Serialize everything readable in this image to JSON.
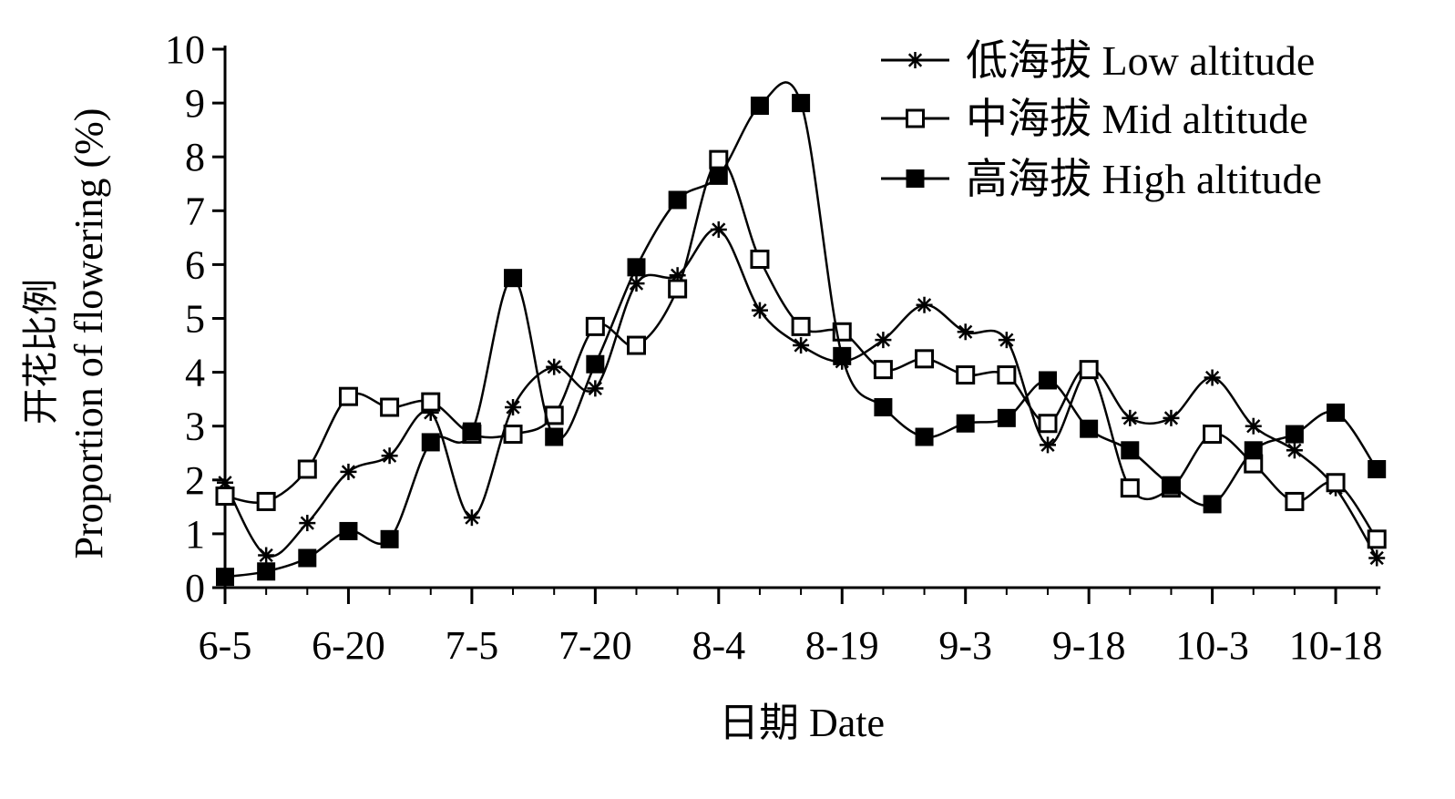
{
  "chart_data": {
    "type": "line",
    "xlabel": "日期 Date",
    "ylabel_cn": "开花比例",
    "ylabel_en": "Proportion of flowering (%)",
    "ylim": [
      0,
      10
    ],
    "y_ticks": [
      "0",
      "1",
      "2",
      "3",
      "4",
      "5",
      "6",
      "7",
      "8",
      "9",
      "10"
    ],
    "x_ticks": [
      "6-5",
      "6-20",
      "7-5",
      "7-20",
      "8-4",
      "8-19",
      "9-3",
      "9-18",
      "10-3",
      "10-18"
    ],
    "x_dates": [
      "6-5",
      "6-10",
      "6-15",
      "6-20",
      "6-25",
      "6-30",
      "7-5",
      "7-10",
      "7-15",
      "7-20",
      "7-25",
      "7-30",
      "8-4",
      "8-9",
      "8-14",
      "8-19",
      "8-24",
      "8-29",
      "9-3",
      "9-8",
      "9-13",
      "9-18",
      "9-23",
      "9-28",
      "10-3",
      "10-8",
      "10-13",
      "10-18",
      "10-23"
    ],
    "legend_position": "top-right",
    "series": [
      {
        "name": "低海拔 Low altitude",
        "marker": "star",
        "values": [
          1.95,
          0.6,
          1.2,
          2.15,
          2.45,
          3.25,
          1.3,
          3.35,
          4.1,
          3.7,
          5.65,
          5.8,
          6.65,
          5.15,
          4.5,
          4.2,
          4.6,
          5.25,
          4.75,
          4.6,
          2.65,
          4.05,
          3.15,
          3.15,
          3.9,
          3.0,
          2.55,
          1.85,
          0.55
        ]
      },
      {
        "name": "中海拔 Mid altitude",
        "marker": "open-square",
        "values": [
          1.7,
          1.6,
          2.2,
          3.55,
          3.35,
          3.45,
          2.85,
          2.85,
          3.2,
          4.85,
          4.5,
          5.55,
          7.95,
          6.1,
          4.85,
          4.75,
          4.05,
          4.25,
          3.95,
          3.95,
          3.05,
          4.05,
          1.85,
          1.85,
          2.85,
          2.3,
          1.6,
          1.95,
          0.9
        ]
      },
      {
        "name": "高海拔 High altitude",
        "marker": "filled-square",
        "values": [
          0.2,
          0.3,
          0.55,
          1.05,
          0.9,
          2.7,
          2.9,
          5.75,
          2.8,
          4.15,
          5.95,
          7.2,
          7.65,
          8.95,
          9.0,
          4.3,
          3.35,
          2.8,
          3.05,
          3.15,
          3.85,
          2.95,
          2.55,
          1.9,
          1.55,
          2.55,
          2.85,
          3.25,
          2.2
        ]
      }
    ]
  }
}
